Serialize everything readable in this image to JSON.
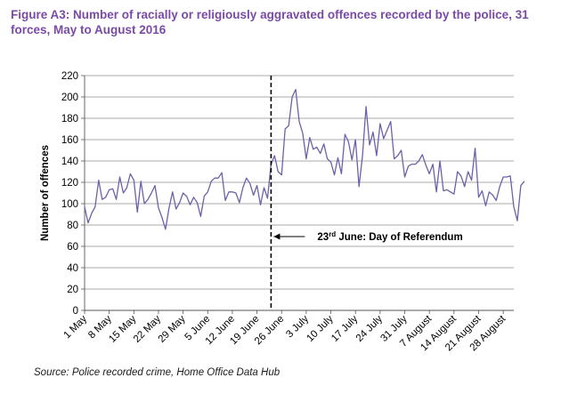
{
  "chart_data": {
    "type": "line",
    "title": "Figure A3: Number of racially or religiously aggravated offences recorded by the police, 31 forces, May to August 2016",
    "ylabel": "Number of offences",
    "xlabel": "",
    "ylim": [
      0,
      220
    ],
    "yticks": [
      0,
      20,
      40,
      60,
      80,
      100,
      120,
      140,
      160,
      180,
      200,
      220
    ],
    "grid": true,
    "x_tick_labels": [
      "1 May",
      "8 May",
      "15 May",
      "22 May",
      "29 May",
      "5 June",
      "12 June",
      "19 June",
      "26 June",
      "3 July",
      "10 July",
      "17 July",
      "24 July",
      "31 July",
      "7 August",
      "14 August",
      "21 August",
      "28 August"
    ],
    "x_tick_dates": [
      "2016-05-01",
      "2016-05-08",
      "2016-05-15",
      "2016-05-22",
      "2016-05-29",
      "2016-06-05",
      "2016-06-12",
      "2016-06-19",
      "2016-06-26",
      "2016-07-03",
      "2016-07-10",
      "2016-07-17",
      "2016-07-24",
      "2016-07-31",
      "2016-08-07",
      "2016-08-14",
      "2016-08-21",
      "2016-08-28"
    ],
    "x_start": "2016-05-01",
    "x_end": "2016-08-31",
    "series": [
      {
        "name": "",
        "color": "#6b62a8",
        "values": [
          97,
          82,
          91,
          97,
          122,
          104,
          106,
          113,
          114,
          104,
          125,
          110,
          115,
          128,
          122,
          92,
          121,
          100,
          104,
          110,
          117,
          96,
          87,
          76,
          96,
          111,
          95,
          101,
          110,
          107,
          99,
          106,
          101,
          88,
          107,
          111,
          121,
          124,
          124,
          129,
          103,
          111,
          111,
          110,
          101,
          115,
          124,
          119,
          108,
          117,
          99,
          115,
          105,
          137,
          145,
          130,
          127,
          170,
          173,
          200,
          207,
          177,
          166,
          142,
          162,
          151,
          153,
          147,
          156,
          142,
          139,
          127,
          143,
          128,
          165,
          158,
          141,
          160,
          116,
          145,
          191,
          155,
          167,
          145,
          175,
          161,
          169,
          177,
          142,
          145,
          150,
          125,
          135,
          137,
          137,
          140,
          146,
          136,
          128,
          137,
          111,
          140,
          112,
          113,
          111,
          109,
          130,
          126,
          116,
          130,
          122,
          152,
          106,
          112,
          98,
          111,
          108,
          103,
          116,
          125,
          125,
          126,
          97,
          84,
          117,
          121
        ]
      }
    ],
    "annotations": [
      {
        "type": "vertical-dashed-line",
        "date": "2016-06-23",
        "label_day": "23",
        "label_sup": "rd",
        "label_rest": " June:  Day of Referendum"
      }
    ]
  },
  "source_text": "Source: Police recorded crime, Home Office Data Hub"
}
